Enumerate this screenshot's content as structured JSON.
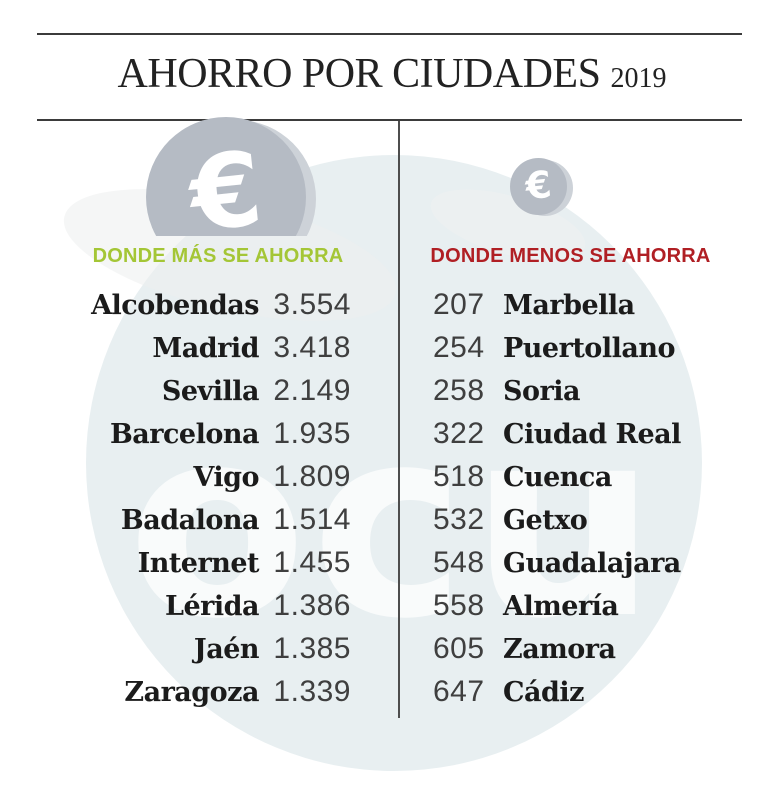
{
  "title": {
    "text": "AHORRO POR CIUDADES",
    "year": "2019"
  },
  "watermark": {
    "text": "ocu"
  },
  "icons": {
    "euro_symbol": "€"
  },
  "left_column": {
    "header": "DONDE MÁS SE AHORRA",
    "rows": [
      {
        "city": "Alcobendas",
        "value": "3.554"
      },
      {
        "city": "Madrid",
        "value": "3.418"
      },
      {
        "city": "Sevilla",
        "value": "2.149"
      },
      {
        "city": "Barcelona",
        "value": "1.935"
      },
      {
        "city": "Vigo",
        "value": "1.809"
      },
      {
        "city": "Badalona",
        "value": "1.514"
      },
      {
        "city": "Internet",
        "value": "1.455"
      },
      {
        "city": "Lérida",
        "value": "1.386"
      },
      {
        "city": "Jaén",
        "value": "1.385"
      },
      {
        "city": "Zaragoza",
        "value": "1.339"
      }
    ]
  },
  "right_column": {
    "header": "DONDE MENOS SE AHORRA",
    "rows": [
      {
        "value": "207",
        "city": "Marbella"
      },
      {
        "value": "254",
        "city": "Puertollano"
      },
      {
        "value": "258",
        "city": "Soria"
      },
      {
        "value": "322",
        "city": "Ciudad Real"
      },
      {
        "value": "518",
        "city": "Cuenca"
      },
      {
        "value": "532",
        "city": "Getxo"
      },
      {
        "value": "548",
        "city": "Guadalajara"
      },
      {
        "value": "558",
        "city": "Almería"
      },
      {
        "value": "605",
        "city": "Zamora"
      },
      {
        "value": "647",
        "city": "Cádiz"
      }
    ]
  },
  "colors": {
    "header_green": "#a4c636",
    "header_red": "#b01f24",
    "rule": "#3b3b3b",
    "coin_face": "#b5bbc4",
    "coin_rim": "#cdd2d8",
    "watermark_blue": "#e8eff1",
    "city_text": "#1b1b1b",
    "value_text": "#3f3f3f"
  },
  "chart_data": {
    "type": "table",
    "title": "AHORRO POR CIUDADES 2019",
    "series": [
      {
        "name": "DONDE MÁS SE AHORRA",
        "categories": [
          "Alcobendas",
          "Madrid",
          "Sevilla",
          "Barcelona",
          "Vigo",
          "Badalona",
          "Internet",
          "Lérida",
          "Jaén",
          "Zaragoza"
        ],
        "values": [
          3554,
          3418,
          2149,
          1935,
          1809,
          1514,
          1455,
          1386,
          1385,
          1339
        ]
      },
      {
        "name": "DONDE MENOS SE AHORRA",
        "categories": [
          "Marbella",
          "Puertollano",
          "Soria",
          "Ciudad Real",
          "Cuenca",
          "Getxo",
          "Guadalajara",
          "Almería",
          "Zamora",
          "Cádiz"
        ],
        "values": [
          207,
          254,
          258,
          322,
          518,
          532,
          548,
          558,
          605,
          647
        ]
      }
    ]
  }
}
